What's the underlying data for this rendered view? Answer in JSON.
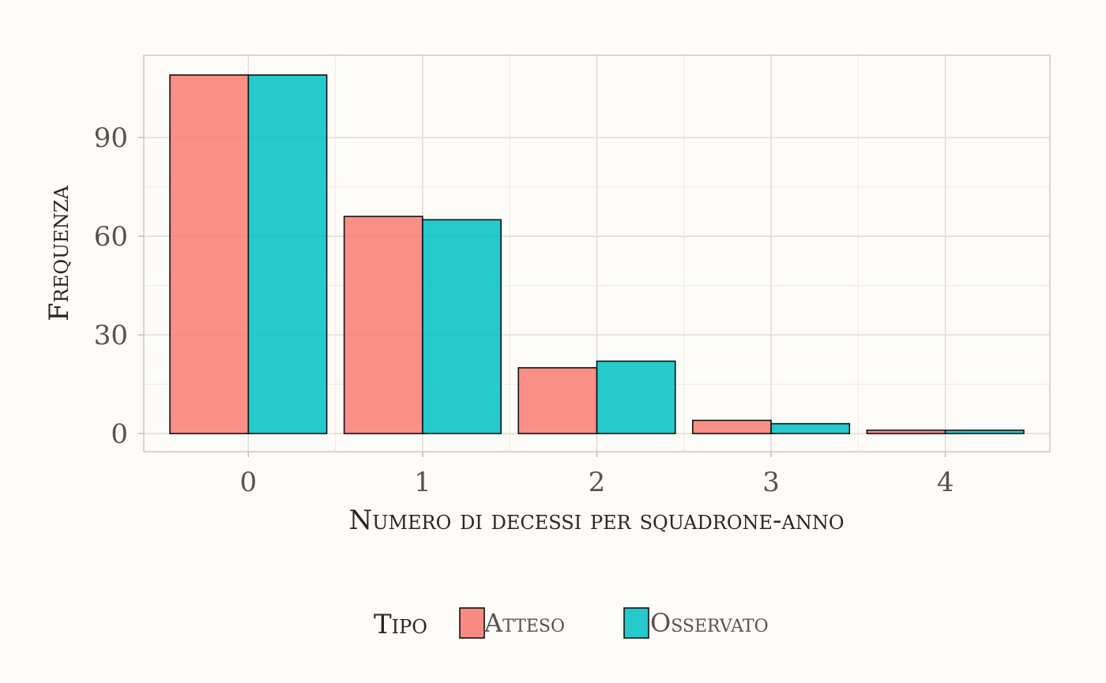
{
  "chart_data": {
    "type": "bar",
    "title": "",
    "xlabel": "Numero di decessi per squadrone-anno",
    "ylabel": "Frequenza",
    "categories": [
      "0",
      "1",
      "2",
      "3",
      "4"
    ],
    "series": [
      {
        "name": "Atteso",
        "values": [
          109,
          66,
          20,
          4,
          1
        ],
        "color": "#f8766d"
      },
      {
        "name": "Osservato",
        "values": [
          109,
          65,
          22,
          3,
          1
        ],
        "color": "#00bfc4"
      }
    ],
    "yticks": [
      0,
      30,
      60,
      90
    ],
    "ytick_labels": [
      "0",
      "30",
      "60",
      "90"
    ],
    "ylim": [
      -5.5,
      115
    ],
    "grid": true,
    "legend_title": "Tipo",
    "legend_position": "bottom"
  }
}
